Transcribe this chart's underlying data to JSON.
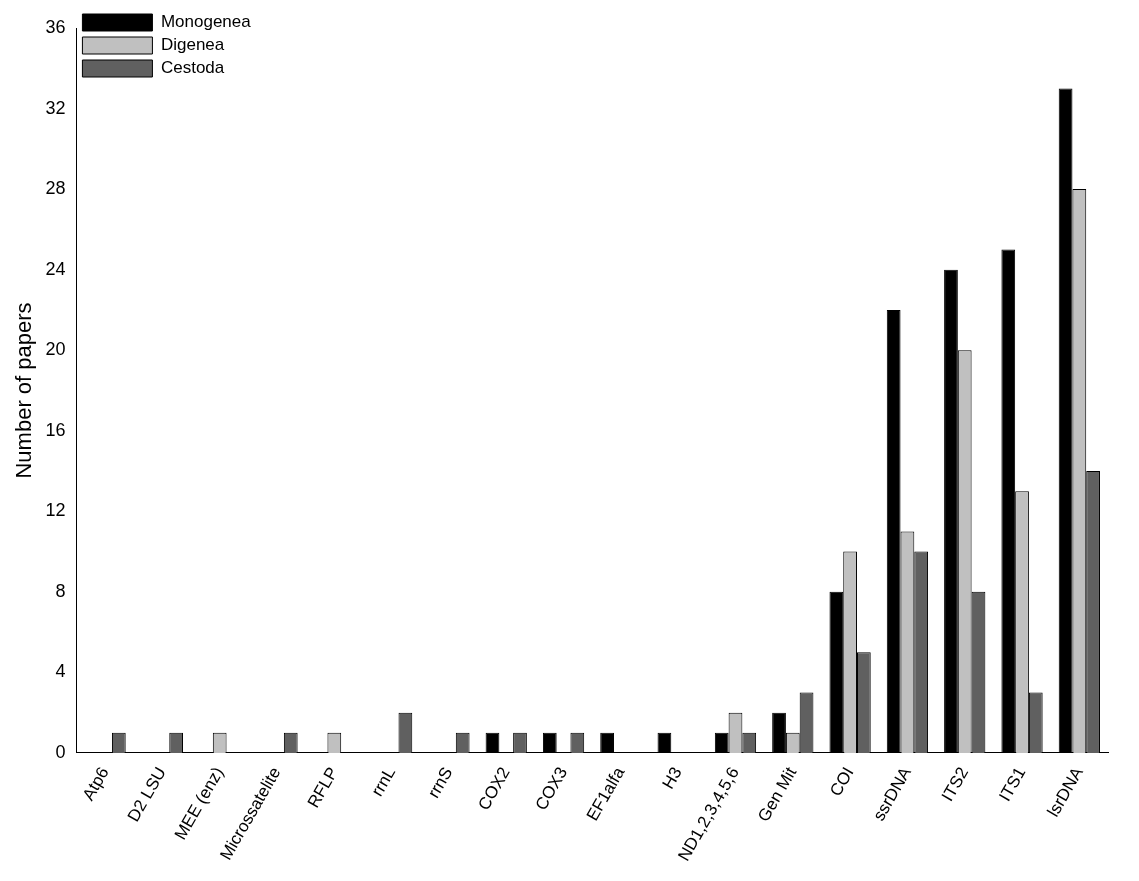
{
  "chart_data": {
    "type": "bar",
    "ylabel": "Number of papers",
    "categories": [
      "Atp6",
      "D2 LSU",
      "MEE (enz)",
      "Microssatelite",
      "RFLP",
      "rrnL",
      "rrnS",
      "COX2",
      "COX3",
      "EF1alfa",
      "H3",
      "ND1,2,3,4,5,6",
      "Gen Mit",
      "COI",
      "ssrDNA",
      "ITS2",
      "ITS1",
      "lsrDNA"
    ],
    "series": [
      {
        "name": "Monogenea",
        "color": "#000000",
        "values": [
          0,
          0,
          0,
          0,
          0,
          0,
          0,
          1,
          1,
          1,
          1,
          1,
          2,
          8,
          22,
          24,
          25,
          33
        ]
      },
      {
        "name": "Digenea",
        "color": "#c0c0c0",
        "values": [
          0,
          0,
          1,
          0,
          1,
          0,
          0,
          0,
          0,
          0,
          0,
          2,
          1,
          10,
          11,
          20,
          13,
          28
        ]
      },
      {
        "name": "Cestoda",
        "color": "#606060",
        "values": [
          1,
          1,
          0,
          1,
          0,
          2,
          1,
          1,
          1,
          0,
          0,
          1,
          3,
          5,
          10,
          8,
          3,
          14
        ]
      }
    ],
    "ylim": [
      0,
      36
    ],
    "yticks": [
      0,
      4,
      8,
      12,
      16,
      20,
      24,
      28,
      32,
      36
    ],
    "grid": false,
    "legend": "top left"
  }
}
